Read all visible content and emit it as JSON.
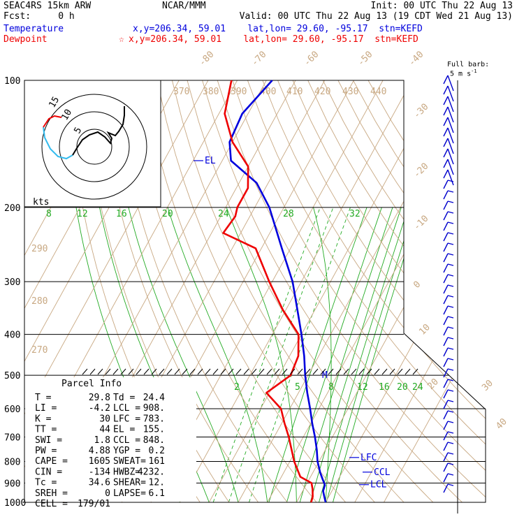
{
  "header": {
    "line1_left": "SEAC4RS 15km ARW",
    "line1_center": "NCAR/MMM",
    "line1_right": "Init: 00 UTC Thu 22 Aug 13",
    "line2_left": "Fcst:     0 h",
    "line2_right": "Valid: 00 UTC Thu 22 Aug 13 (19 CDT Wed 21 Aug 13)",
    "temp_label": "Temperature",
    "temp_info": "x,y=206.34, 59.01    lat,lon= 29.60, -95.17  stn=KEFD",
    "dew_label": "Dewpoint",
    "dew_info": "x,y=206.34, 59.01    lat,lon= 29.60, -95.17  stn=KEFD",
    "dew_star": "☆"
  },
  "colors": {
    "temperature": "#0000dd",
    "dewpoint": "#ee0000",
    "isotherm": "#c8a882",
    "mixing_ratio": "#22aa22",
    "wind_barb": "#0000cc",
    "hodograph_red": "#ee0000",
    "hodograph_cyan": "#33bbee"
  },
  "wind_legend": {
    "line1": "Full barb:",
    "line2": "5 m s",
    "sup": "-1"
  },
  "hodograph": {
    "units": "kts",
    "ring_labels": [
      "5",
      "10",
      "15"
    ]
  },
  "parcel": {
    "title": "Parcel Info",
    "rows": [
      {
        "k1": "T   =",
        "v1": "29.8",
        "k2": "Td =",
        "v2": "24.4"
      },
      {
        "k1": "LI  =",
        "v1": "-4.2",
        "k2": "LCL =",
        "v2": "908."
      },
      {
        "k1": "K   =",
        "v1": "30",
        "k2": "LFC =",
        "v2": "783."
      },
      {
        "k1": "TT  =",
        "v1": "44",
        "k2": "EL  =",
        "v2": "155."
      },
      {
        "k1": "SWI =",
        "v1": "1.8",
        "k2": "CCL =",
        "v2": "848."
      },
      {
        "k1": "PW  =",
        "v1": "4.88",
        "k2": "YGP =",
        "v2": "0.2"
      },
      {
        "k1": "CAPE =",
        "v1": "1605",
        "k2": "SWEAT=",
        "v2": "161"
      },
      {
        "k1": "CIN =",
        "v1": "-134",
        "k2": "HWBZ=",
        "v2": "4232."
      },
      {
        "k1": "Tc  =",
        "v1": "34.6",
        "k2": "SHEAR=",
        "v2": "12."
      },
      {
        "k1": "SREH =",
        "v1": "0",
        "k2": "LAPSE=",
        "v2": "6.1"
      },
      {
        "k1": "CELL =",
        "v1": "179/01",
        "k2": "",
        "v2": ""
      }
    ]
  },
  "markers": {
    "el": "EL",
    "lfc": "LFC",
    "ccl": "CCL",
    "lcl": "LCL",
    "m": "M"
  },
  "chart_data": {
    "type": "line",
    "title": "",
    "y_axis": {
      "scale": "log",
      "ticks": [
        100,
        200,
        300,
        400,
        500,
        600,
        700,
        800,
        900,
        1000
      ],
      "range": [
        100,
        1000
      ]
    },
    "isotherm_labels": [
      "-80",
      "-70",
      "-60",
      "-50",
      "-40",
      "-30",
      "-20",
      "-10",
      "0",
      "10",
      "20",
      "30",
      "40"
    ],
    "theta_labels": [
      "370",
      "380",
      "390",
      "400",
      "410",
      "420",
      "430",
      "440",
      "290",
      "280",
      "270"
    ],
    "mixing_ratio_labels_upper": [
      "8",
      "12",
      "16",
      "20",
      "24",
      "28",
      "32"
    ],
    "mixing_ratio_labels_lower": [
      "2",
      "5",
      "8",
      "12",
      "16",
      "20",
      "24"
    ],
    "series": [
      {
        "name": "Temperature",
        "points": [
          [
            1000,
            30
          ],
          [
            970,
            28.5
          ],
          [
            940,
            27
          ],
          [
            910,
            26.5
          ],
          [
            880,
            24.5
          ],
          [
            850,
            22.5
          ],
          [
            800,
            19.5
          ],
          [
            750,
            17
          ],
          [
            700,
            14
          ],
          [
            650,
            10.5
          ],
          [
            600,
            7
          ],
          [
            550,
            3
          ],
          [
            500,
            -1
          ],
          [
            450,
            -5
          ],
          [
            400,
            -10
          ],
          [
            350,
            -16
          ],
          [
            300,
            -23
          ],
          [
            250,
            -33
          ],
          [
            200,
            -45
          ],
          [
            175,
            -54
          ],
          [
            155,
            -67
          ],
          [
            140,
            -71
          ],
          [
            120,
            -72
          ],
          [
            100,
            -68
          ]
        ]
      },
      {
        "name": "Dewpoint",
        "points": [
          [
            1000,
            25
          ],
          [
            970,
            24.5
          ],
          [
            930,
            23
          ],
          [
            900,
            21.5
          ],
          [
            870,
            16.5
          ],
          [
            800,
            11.5
          ],
          [
            700,
            5
          ],
          [
            650,
            1
          ],
          [
            600,
            -3
          ],
          [
            550,
            -11
          ],
          [
            500,
            -6
          ],
          [
            450,
            -7
          ],
          [
            400,
            -11
          ],
          [
            350,
            -21
          ],
          [
            300,
            -31
          ],
          [
            250,
            -42
          ],
          [
            230,
            -56
          ],
          [
            210,
            -55
          ],
          [
            200,
            -56
          ],
          [
            180,
            -56
          ],
          [
            160,
            -60
          ],
          [
            140,
            -70
          ],
          [
            120,
            -78
          ],
          [
            100,
            -82
          ]
        ]
      }
    ]
  }
}
